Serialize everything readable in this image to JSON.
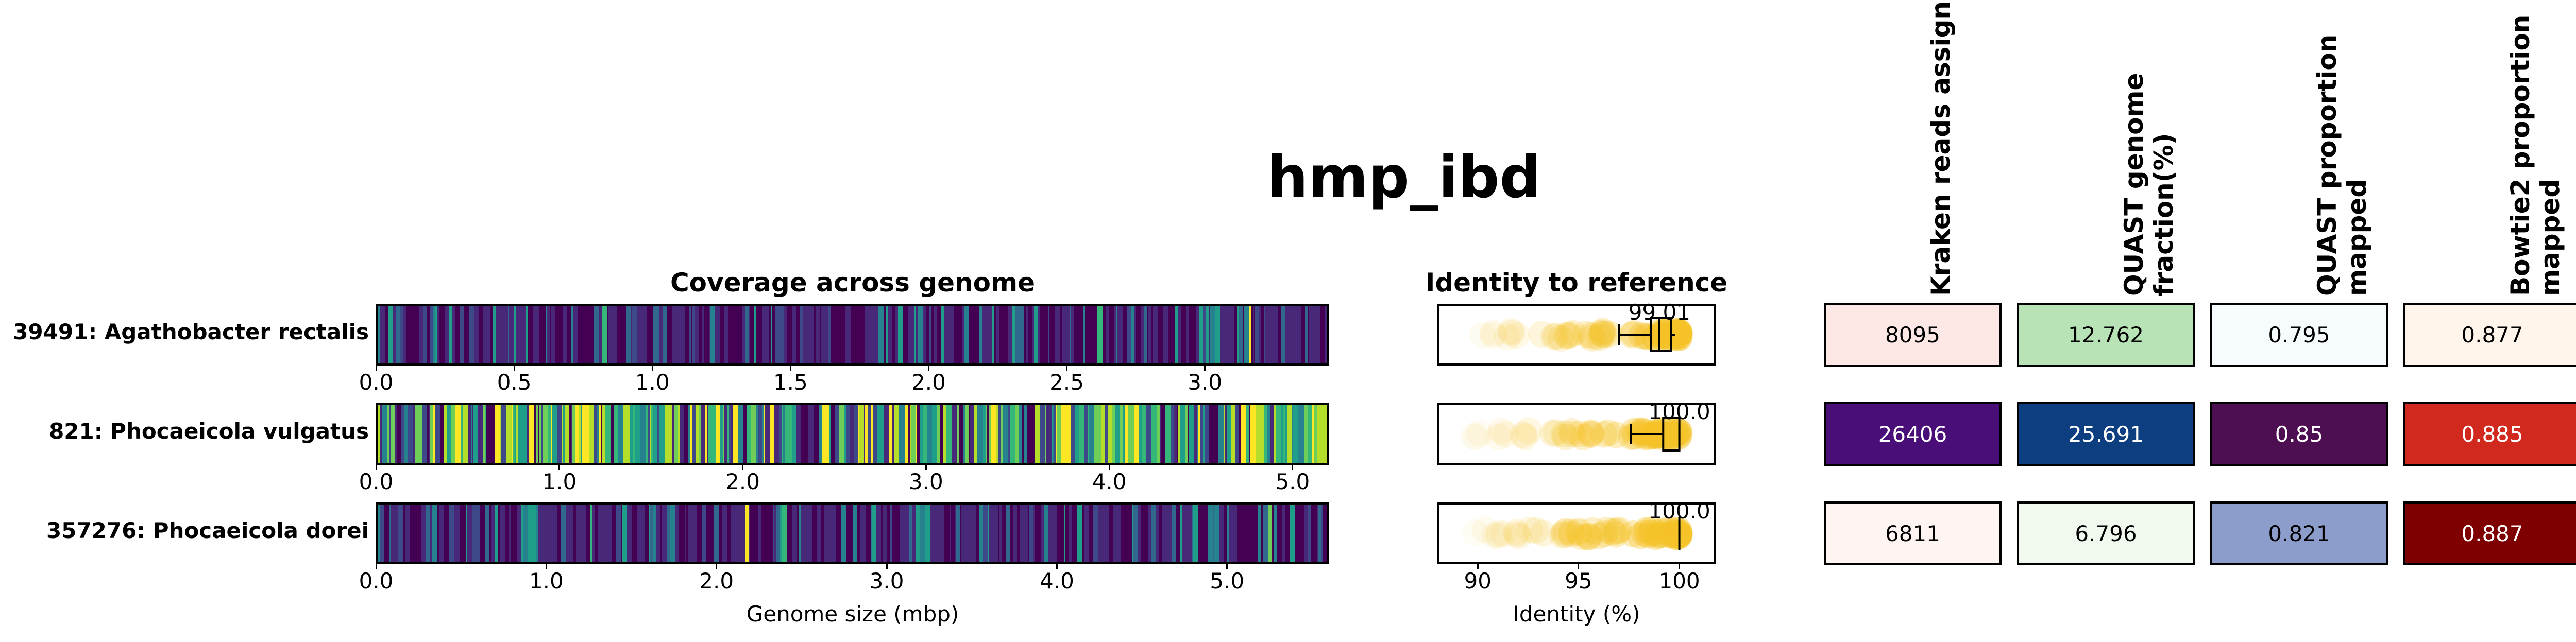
{
  "title": "hmp_ibd",
  "coverage_panel": {
    "title": "Coverage across genome",
    "xlabel": "Genome size (mbp)"
  },
  "identity_panel": {
    "title": "Identity to reference",
    "xlabel": "Identity (%)",
    "ticks": [
      "90",
      "95",
      "100"
    ]
  },
  "metric_headers": [
    "Kraken reads assigned",
    "QUAST genome fraction(%)",
    "QUAST proportion mapped",
    "Bowtie2 proportion mapped"
  ],
  "chart_data": {
    "type": "heatmap",
    "colormaps": {
      "coverage": "viridis",
      "Kraken reads assigned": "Reds/Purples",
      "QUAST genome fraction(%)": "Greens/Blues",
      "QUAST proportion mapped": "BuPu",
      "Bowtie2 proportion mapped": "OrRd"
    },
    "rows": [
      {
        "label": "39491: Agathobacter rectalis",
        "coverage": {
          "genome_size_mbp": 3.45,
          "ticks": [
            "0.0",
            "0.5",
            "1.0",
            "1.5",
            "2.0",
            "2.5",
            "3.0"
          ],
          "dominant": "dark",
          "seed": 7
        },
        "identity": {
          "median": 99.01,
          "median_label": "99.01",
          "q1": 98.6,
          "q3": 99.6,
          "whisker_low": 97.0,
          "whisker_high": 99.8
        },
        "metrics": [
          {
            "label": "8095",
            "fill": "#fde8e6",
            "text": "#000000"
          },
          {
            "label": "12.762",
            "fill": "#b8e3b6",
            "text": "#000000"
          },
          {
            "label": "0.795",
            "fill": "#f6fbfd",
            "text": "#000000"
          },
          {
            "label": "0.877",
            "fill": "#fff5eb",
            "text": "#000000"
          }
        ]
      },
      {
        "label": "821: Phocaeicola vulgatus",
        "coverage": {
          "genome_size_mbp": 5.2,
          "ticks": [
            "0.0",
            "1.0",
            "2.0",
            "3.0",
            "4.0",
            "5.0"
          ],
          "dominant": "bright",
          "seed": 13
        },
        "identity": {
          "median": 100.0,
          "median_label": "100.0",
          "q1": 99.2,
          "q3": 100.0,
          "whisker_low": 97.6,
          "whisker_high": 100.0
        },
        "metrics": [
          {
            "label": "26406",
            "fill": "#4a0e78",
            "text": "#ffffff"
          },
          {
            "label": "25.691",
            "fill": "#0d3f80",
            "text": "#ffffff"
          },
          {
            "label": "0.85",
            "fill": "#4d0e52",
            "text": "#ffffff"
          },
          {
            "label": "0.885",
            "fill": "#d1291e",
            "text": "#ffffff"
          }
        ]
      },
      {
        "label": "357276: Phocaeicola dorei",
        "coverage": {
          "genome_size_mbp": 5.6,
          "ticks": [
            "0.0",
            "1.0",
            "2.0",
            "3.0",
            "4.0",
            "5.0"
          ],
          "dominant": "dark",
          "seed": 29
        },
        "identity": {
          "median": 100.0,
          "median_label": "100.0",
          "q1": 100.0,
          "q3": 100.0,
          "whisker_low": 100.0,
          "whisker_high": 100.0
        },
        "metrics": [
          {
            "label": "6811",
            "fill": "#fef4f2",
            "text": "#000000"
          },
          {
            "label": "6.796",
            "fill": "#f1f9ef",
            "text": "#000000"
          },
          {
            "label": "0.821",
            "fill": "#8c9ccb",
            "text": "#000000"
          },
          {
            "label": "0.887",
            "fill": "#7f0000",
            "text": "#ffffff"
          }
        ]
      }
    ]
  }
}
